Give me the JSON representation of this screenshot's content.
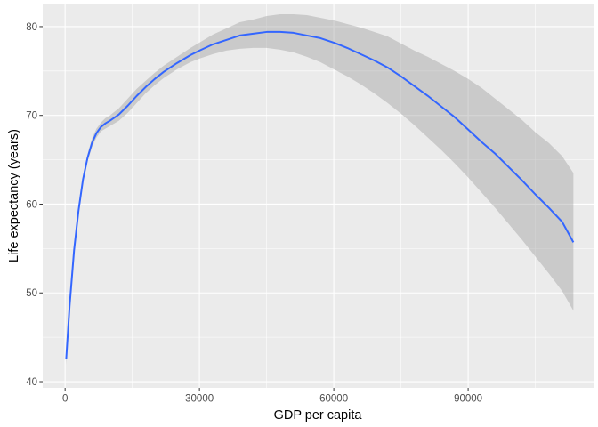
{
  "chart_data": {
    "type": "line",
    "title": "",
    "xlabel": "GDP per capita",
    "ylabel": "Life expectancy (years)",
    "xlim": [
      -5000,
      118000
    ],
    "ylim": [
      39.3,
      82.5
    ],
    "x_ticks": [
      0,
      30000,
      60000,
      90000
    ],
    "x_tick_labels": [
      "0",
      "30000",
      "60000",
      "90000"
    ],
    "x_minor_ticks": [
      15000,
      45000,
      75000,
      105000
    ],
    "y_ticks": [
      40,
      50,
      60,
      70,
      80
    ],
    "y_tick_labels": [
      "40",
      "50",
      "60",
      "70",
      "80"
    ],
    "y_minor_ticks": [
      45,
      55,
      65,
      75
    ],
    "grid": true,
    "legend": "none",
    "series": [
      {
        "x": [
          250,
          1000,
          2000,
          3000,
          4000,
          5000,
          6000,
          7000,
          8000,
          9000,
          10000,
          12000,
          14000,
          16000,
          18000,
          20000,
          22000,
          25000,
          28000,
          30000,
          33000,
          36000,
          39000,
          42000,
          45000,
          48000,
          51000,
          54000,
          57000,
          60000,
          63000,
          66000,
          69000,
          72000,
          75000,
          78000,
          81000,
          84000,
          87000,
          90000,
          93000,
          96000,
          99000,
          102000,
          105000,
          108000,
          111000,
          113500
        ],
        "y": [
          42.6,
          48.5,
          54.8,
          59.3,
          62.8,
          65.2,
          66.9,
          68.0,
          68.7,
          69.1,
          69.4,
          70.1,
          71.1,
          72.2,
          73.2,
          74.1,
          74.9,
          75.9,
          76.8,
          77.3,
          78.0,
          78.5,
          79.0,
          79.2,
          79.4,
          79.4,
          79.3,
          79.0,
          78.7,
          78.2,
          77.6,
          76.9,
          76.2,
          75.4,
          74.4,
          73.3,
          72.2,
          71.0,
          69.8,
          68.4,
          67.0,
          65.7,
          64.2,
          62.7,
          61.1,
          59.6,
          58.0,
          55.7
        ],
        "lower": [
          41.9,
          47.9,
          54.3,
          58.9,
          62.4,
          64.8,
          66.4,
          67.5,
          68.2,
          68.5,
          68.8,
          69.4,
          70.3,
          71.4,
          72.5,
          73.4,
          74.2,
          75.2,
          76.0,
          76.4,
          76.9,
          77.3,
          77.5,
          77.6,
          77.6,
          77.4,
          77.1,
          76.6,
          76.0,
          75.2,
          74.4,
          73.5,
          72.5,
          71.4,
          70.2,
          68.9,
          67.5,
          66.1,
          64.6,
          63.0,
          61.3,
          59.6,
          57.8,
          56.0,
          54.1,
          52.2,
          50.2,
          48.0
        ],
        "upper": [
          43.3,
          49.1,
          55.3,
          59.7,
          63.2,
          65.6,
          67.4,
          68.5,
          69.2,
          69.7,
          70.0,
          70.8,
          71.9,
          73.0,
          73.9,
          74.8,
          75.6,
          76.6,
          77.6,
          78.2,
          79.1,
          79.8,
          80.5,
          80.8,
          81.2,
          81.4,
          81.4,
          81.3,
          81.0,
          80.7,
          80.3,
          79.9,
          79.4,
          78.9,
          78.1,
          77.3,
          76.6,
          75.8,
          75.0,
          74.1,
          73.1,
          71.9,
          70.7,
          69.5,
          68.1,
          66.9,
          65.4,
          63.5
        ]
      }
    ],
    "colors": {
      "line": "#3366FF",
      "ribbon": "#999999",
      "panel": "#EBEBEB",
      "grid": "#FFFFFF",
      "tick": "#333333"
    }
  }
}
